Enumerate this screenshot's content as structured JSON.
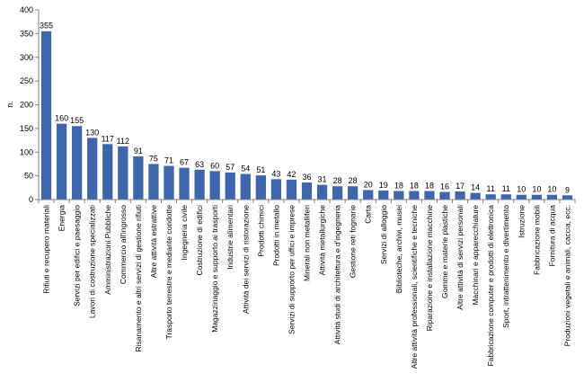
{
  "colors": {
    "bar": "#3e66ad",
    "axis": "#808080",
    "grid": "#d9d9d9"
  },
  "chart_data": {
    "type": "bar",
    "ylabel": "n.",
    "ylim": [
      0,
      400
    ],
    "yticks": [
      0,
      50,
      100,
      150,
      200,
      250,
      300,
      350,
      400
    ],
    "grid": false,
    "categories": [
      "Rifiuti e recupero materiali",
      "Energia",
      "Servizi per edifici e paesaggio",
      "Lavori di costruzione specializzati",
      "Amministrazioni Pubbliche",
      "Commercio all'ingrosso",
      "Risanamento e altri servizi di gestione rifiuti",
      "Altre attività estrattive",
      "Trasporto terrestre e mediante condotte",
      "Ingegneria civile",
      "Costruzione di edifici",
      "Magazzinaggio e supporto ai trasporti",
      "Industrie alimentari",
      "Attività dei servizi di ristorazione",
      "Prodotti chimici",
      "Prodotti in metallo",
      "Servizi di supporto per uffici e imprese",
      "Minerali non metalliferi",
      "Attività metallurgiche",
      "Attività studi di architettura e d'ingegneria",
      "Gestione reti fognarie",
      "Carta",
      "Servizi di alloggio",
      "Biblioteche, archivi, musei",
      "Altre attività professionali, scientifiche e tecniche",
      "Riparazione e installazione macchine",
      "Gomme e materie plastiche",
      "Altre attività di servizi personali",
      "Macchinari e apparecchiature",
      "Fabbricazione computer e prodotti di elettronica",
      "Sport, intrattenimento e divertimento",
      "Istruzione",
      "Fabbricazione mobili",
      "Fornitura di acqua",
      "Produzioni vegetali e animali, caccia, ecc."
    ],
    "values": [
      355,
      160,
      155,
      130,
      117,
      112,
      91,
      75,
      71,
      67,
      63,
      60,
      57,
      54,
      51,
      43,
      42,
      36,
      31,
      28,
      28,
      20,
      19,
      18,
      18,
      18,
      16,
      17,
      14,
      11,
      11,
      10,
      10,
      10,
      9
    ]
  }
}
